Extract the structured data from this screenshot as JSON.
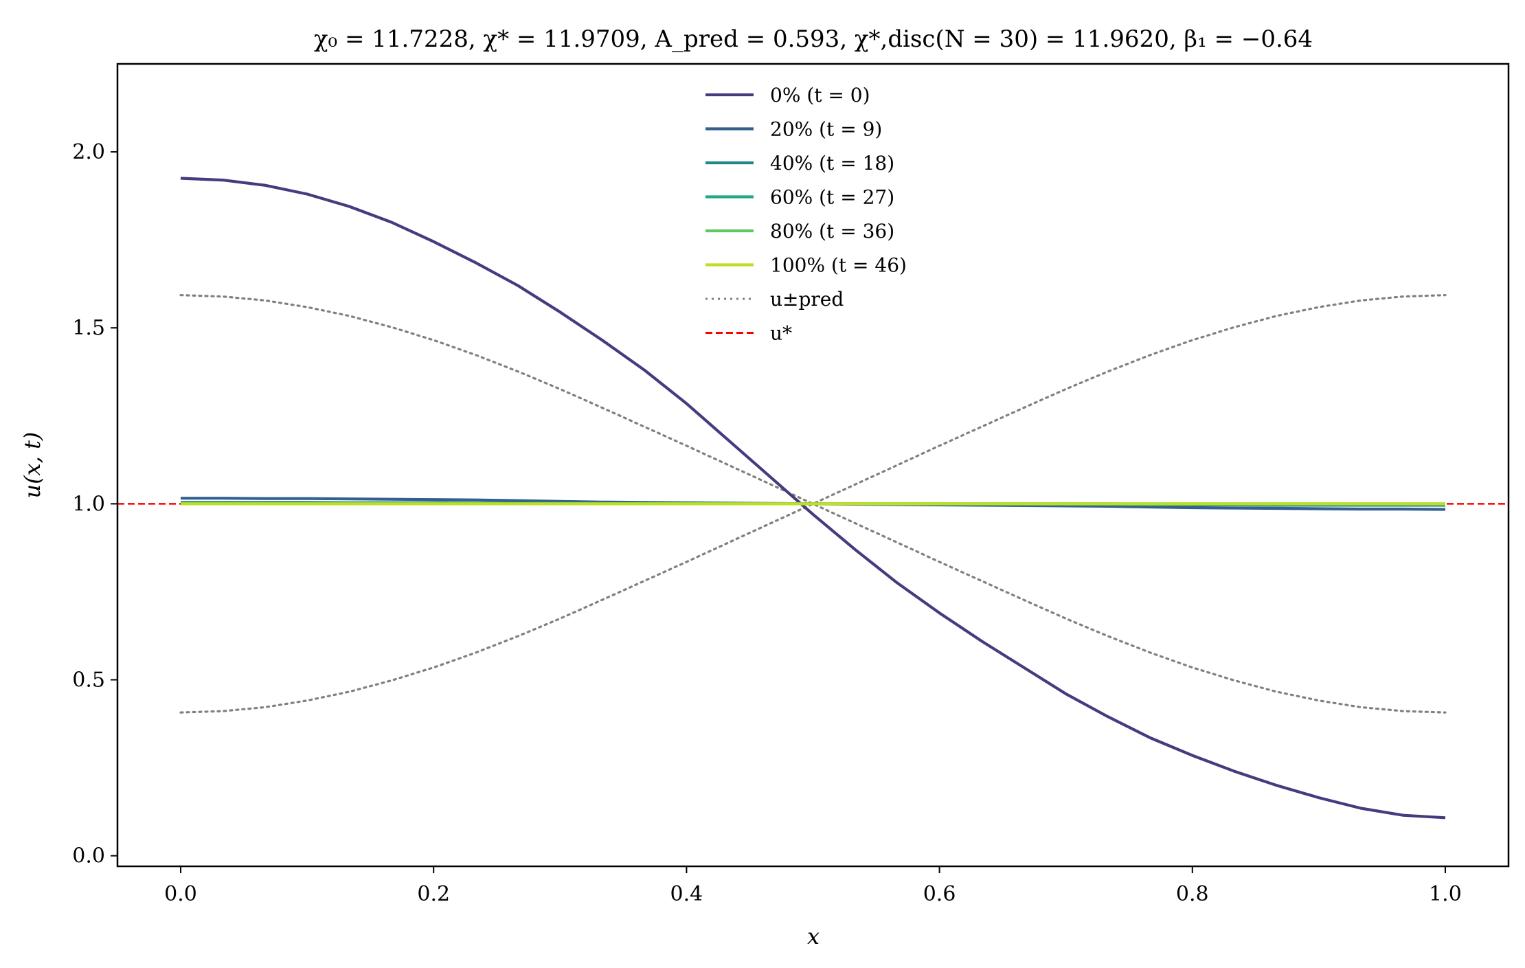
{
  "chart_data": {
    "type": "line",
    "title": "χ₀ = 11.7228,  χ* = 11.9709,  A_pred = 0.593,  χ*,disc(N = 30) = 11.9620,  β₁ = −0.64",
    "xlabel": "x",
    "ylabel": "u(x, t)",
    "xlim": [
      -0.05,
      1.05
    ],
    "ylim": [
      -0.03,
      2.25
    ],
    "x_ticks": [
      0.0,
      0.2,
      0.4,
      0.6,
      0.8,
      1.0
    ],
    "x_tick_labels": [
      "0.0",
      "0.2",
      "0.4",
      "0.6",
      "0.8",
      "1.0"
    ],
    "y_ticks": [
      0.0,
      0.5,
      1.0,
      1.5,
      2.0
    ],
    "y_tick_labels": [
      "0.0",
      "0.5",
      "1.0",
      "1.5",
      "2.0"
    ],
    "grid": false,
    "legend_position": "top-center",
    "x": [
      0.0,
      0.0333,
      0.0667,
      0.1,
      0.1333,
      0.1667,
      0.2,
      0.2333,
      0.2667,
      0.3,
      0.3333,
      0.3667,
      0.4,
      0.4333,
      0.4667,
      0.5,
      0.5333,
      0.5667,
      0.6,
      0.6333,
      0.6667,
      0.7,
      0.7333,
      0.7667,
      0.8,
      0.8333,
      0.8667,
      0.9,
      0.9333,
      0.9667,
      1.0
    ],
    "series": [
      {
        "name": "0% (t = 0)",
        "color": "#433c7f",
        "style": "solid",
        "values": [
          1.925,
          1.92,
          1.905,
          1.88,
          1.845,
          1.8,
          1.745,
          1.685,
          1.62,
          1.545,
          1.465,
          1.38,
          1.285,
          1.18,
          1.075,
          0.97,
          0.87,
          0.775,
          0.69,
          0.61,
          0.535,
          0.46,
          0.395,
          0.335,
          0.285,
          0.24,
          0.2,
          0.165,
          0.135,
          0.115,
          0.108
        ]
      },
      {
        "name": "20% (t = 9)",
        "color": "#33608d",
        "style": "solid",
        "values": [
          1.016,
          1.016,
          1.015,
          1.015,
          1.014,
          1.013,
          1.012,
          1.011,
          1.009,
          1.007,
          1.005,
          1.004,
          1.003,
          1.002,
          1.001,
          1.0,
          0.999,
          0.998,
          0.997,
          0.996,
          0.995,
          0.994,
          0.993,
          0.991,
          0.989,
          0.988,
          0.987,
          0.986,
          0.985,
          0.985,
          0.984
        ]
      },
      {
        "name": "40% (t = 18)",
        "color": "#23868d",
        "style": "solid",
        "values": [
          1.004,
          1.004,
          1.004,
          1.004,
          1.003,
          1.003,
          1.003,
          1.002,
          1.002,
          1.002,
          1.001,
          1.001,
          1.001,
          1.0,
          1.0,
          1.0,
          1.0,
          0.999,
          0.999,
          0.999,
          0.998,
          0.998,
          0.998,
          0.997,
          0.997,
          0.997,
          0.996,
          0.996,
          0.996,
          0.996,
          0.996
        ]
      },
      {
        "name": "60% (t = 27)",
        "color": "#22a884",
        "style": "solid",
        "values": [
          1.001,
          1.001,
          1.001,
          1.001,
          1.001,
          1.001,
          1.001,
          1.001,
          1.0,
          1.0,
          1.0,
          1.0,
          1.0,
          1.0,
          1.0,
          1.0,
          1.0,
          1.0,
          1.0,
          1.0,
          1.0,
          1.0,
          1.0,
          0.999,
          0.999,
          0.999,
          0.999,
          0.999,
          0.999,
          0.999,
          0.999
        ]
      },
      {
        "name": "80% (t = 36)",
        "color": "#5ec962",
        "style": "solid",
        "values": [
          1.0,
          1.0,
          1.0,
          1.0,
          1.0,
          1.0,
          1.0,
          1.0,
          1.0,
          1.0,
          1.0,
          1.0,
          1.0,
          1.0,
          1.0,
          1.0,
          1.0,
          1.0,
          1.0,
          1.0,
          1.0,
          1.0,
          1.0,
          1.0,
          1.0,
          1.0,
          1.0,
          1.0,
          1.0,
          1.0,
          1.0
        ]
      },
      {
        "name": "100% (t = 46)",
        "color": "#bddf26",
        "style": "solid",
        "values": [
          1.0,
          1.0,
          1.0,
          1.0,
          1.0,
          1.0,
          1.0,
          1.0,
          1.0,
          1.0,
          1.0,
          1.0,
          1.0,
          1.0,
          1.0,
          1.0,
          1.0,
          1.0,
          1.0,
          1.0,
          1.0,
          1.0,
          1.0,
          1.0,
          1.0,
          1.0,
          1.0,
          1.0,
          1.0,
          1.0,
          1.0
        ]
      },
      {
        "name": "u±pred",
        "color": "#808080",
        "style": "dotted",
        "values": [
          1.593,
          1.589,
          1.578,
          1.559,
          1.534,
          1.502,
          1.465,
          1.423,
          1.376,
          1.326,
          1.273,
          1.219,
          1.165,
          1.11,
          1.055,
          1.0,
          0.945,
          0.89,
          0.835,
          0.781,
          0.727,
          0.674,
          0.624,
          0.577,
          0.535,
          0.498,
          0.466,
          0.441,
          0.422,
          0.411,
          0.407
        ]
      },
      {
        "name": "",
        "color": "#808080",
        "style": "dotted",
        "values": [
          0.407,
          0.411,
          0.422,
          0.441,
          0.466,
          0.498,
          0.535,
          0.577,
          0.624,
          0.674,
          0.727,
          0.781,
          0.835,
          0.89,
          0.945,
          1.0,
          1.055,
          1.11,
          1.165,
          1.219,
          1.273,
          1.326,
          1.376,
          1.423,
          1.465,
          1.502,
          1.534,
          1.559,
          1.578,
          1.589,
          1.593
        ]
      }
    ],
    "reference_line": {
      "name": "u*",
      "y": 1.0,
      "color": "#ff0000",
      "style": "dashed"
    }
  }
}
